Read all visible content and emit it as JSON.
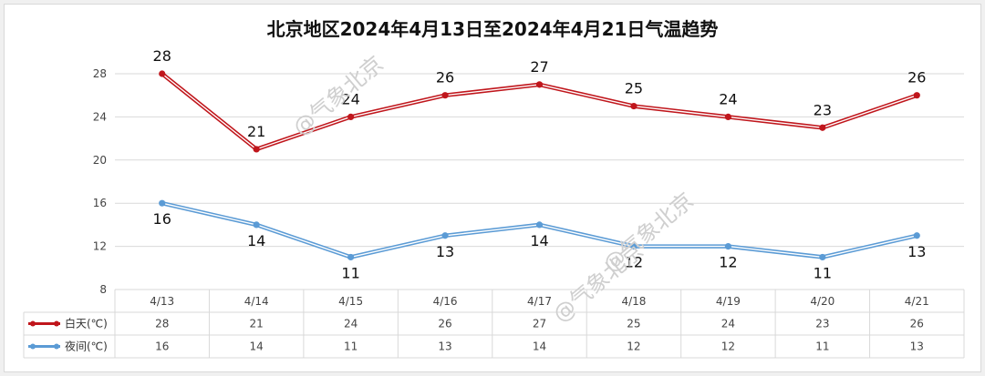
{
  "title": "北京地区2024年4月13日至2024年4月21日气温趋势",
  "watermark": "@气象北京",
  "colors": {
    "day": "#c0161c",
    "night": "#5b9bd5",
    "grid": "#d9d9d9"
  },
  "chart_data": {
    "type": "line",
    "title": "北京地区2024年4月13日至2024年4月21日气温趋势",
    "categories": [
      "4/13",
      "4/14",
      "4/15",
      "4/16",
      "4/17",
      "4/18",
      "4/19",
      "4/20",
      "4/21"
    ],
    "series": [
      {
        "name": "白天(℃)",
        "values": [
          28,
          21,
          24,
          26,
          27,
          25,
          24,
          23,
          26
        ]
      },
      {
        "name": "夜间(℃)",
        "values": [
          16,
          14,
          11,
          13,
          14,
          12,
          12,
          11,
          13
        ]
      }
    ],
    "ylim": [
      8,
      28
    ],
    "yticks": [
      8,
      12,
      16,
      20,
      24,
      28
    ],
    "grid": true,
    "legend": "data-table"
  }
}
